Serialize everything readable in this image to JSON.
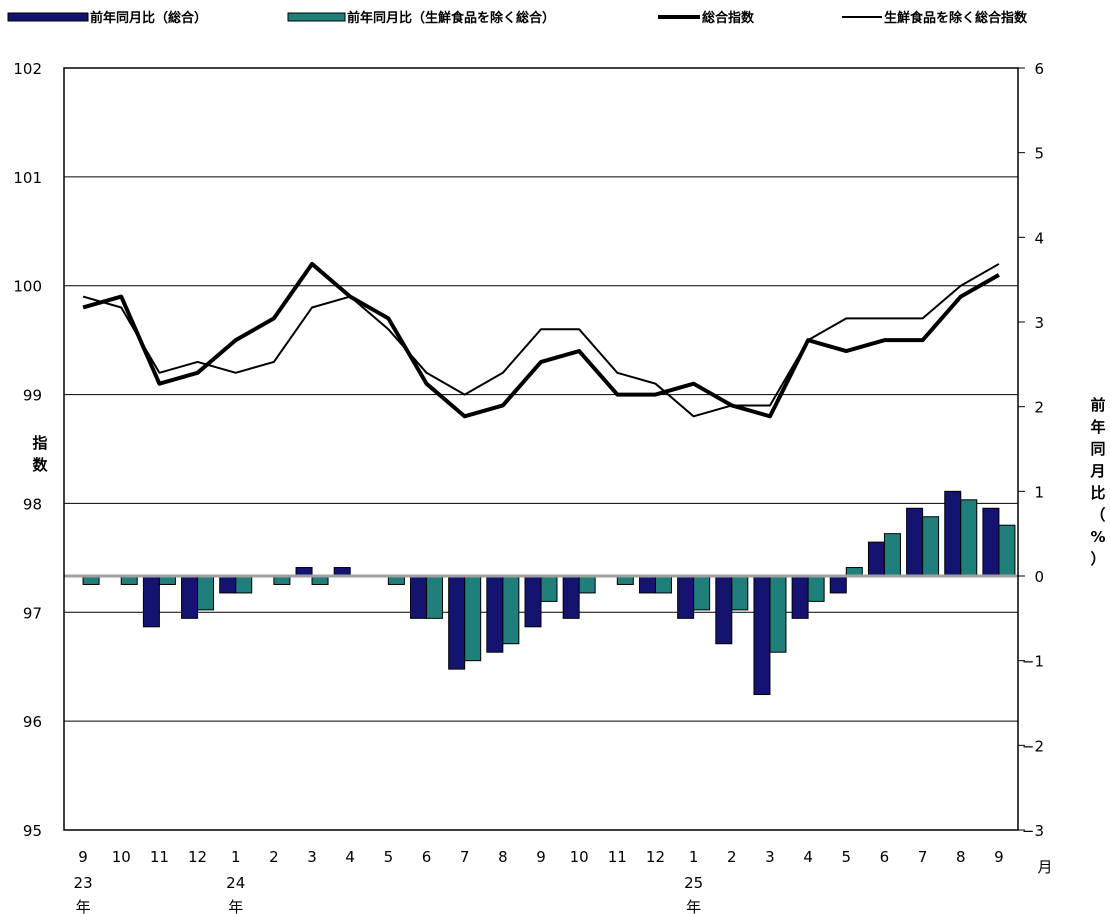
{
  "legend": {
    "bar1": "前年同月比（総合）",
    "bar2": "前年同月比（生鮮食品を除く総合）",
    "line1": "総合指数",
    "line2": "生鮮食品を除く総合指数"
  },
  "axes": {
    "left_label": "指数",
    "right_label": "前年同月比（%）",
    "x_unit": "月",
    "year_labels": [
      {
        "index": 0,
        "text": "23"
      },
      {
        "index": 4,
        "text": "24"
      },
      {
        "index": 16,
        "text": "25"
      }
    ],
    "year_suffix": "年"
  },
  "colors": {
    "bar1": "#141470",
    "bar2": "#1f7f7a",
    "line": "#000000",
    "grid": "#000000",
    "zero_line": "#a0a0a0"
  },
  "chart_data": {
    "type": "bar+line",
    "categories": [
      "9",
      "10",
      "11",
      "12",
      "1",
      "2",
      "3",
      "4",
      "5",
      "6",
      "7",
      "8",
      "9",
      "10",
      "11",
      "12",
      "1",
      "2",
      "3",
      "4",
      "5",
      "6",
      "7",
      "8",
      "9"
    ],
    "left_axis": {
      "ylim": [
        95,
        102
      ],
      "ticks": [
        95,
        96,
        97,
        98,
        99,
        100,
        101,
        102
      ]
    },
    "right_axis": {
      "ylim": [
        -3,
        6
      ],
      "ticks": [
        -3,
        -2,
        -1,
        0,
        1,
        2,
        3,
        4,
        5,
        6
      ]
    },
    "bar_series": [
      {
        "name": "前年同月比（総合）",
        "axis": "right",
        "values": [
          0.0,
          0.0,
          -0.6,
          -0.5,
          -0.2,
          0.0,
          0.1,
          0.1,
          0.0,
          -0.5,
          -1.1,
          -0.9,
          -0.6,
          -0.5,
          0.0,
          -0.2,
          -0.5,
          -0.8,
          -1.4,
          -0.5,
          -0.2,
          0.4,
          0.8,
          1.0,
          0.8
        ]
      },
      {
        "name": "前年同月比（生鮮食品を除く総合）",
        "axis": "right",
        "values": [
          -0.1,
          -0.1,
          -0.1,
          -0.4,
          -0.2,
          -0.1,
          -0.1,
          0.0,
          -0.1,
          -0.5,
          -1.0,
          -0.8,
          -0.3,
          -0.2,
          -0.1,
          -0.2,
          -0.4,
          -0.4,
          -0.9,
          -0.3,
          0.1,
          0.5,
          0.7,
          0.9,
          0.6
        ]
      }
    ],
    "line_series": [
      {
        "name": "総合指数",
        "axis": "left",
        "width": 4,
        "values": [
          99.8,
          99.9,
          99.1,
          99.2,
          99.5,
          99.7,
          100.2,
          99.9,
          99.7,
          99.1,
          98.8,
          98.9,
          99.3,
          99.4,
          99.0,
          99.0,
          99.1,
          98.9,
          98.8,
          99.5,
          99.4,
          99.5,
          99.5,
          99.9,
          100.1
        ]
      },
      {
        "name": "生鮮食品を除く総合指数",
        "axis": "left",
        "width": 2,
        "values": [
          99.9,
          99.8,
          99.2,
          99.3,
          99.2,
          99.3,
          99.8,
          99.9,
          99.6,
          99.2,
          99.0,
          99.2,
          99.6,
          99.6,
          99.2,
          99.1,
          98.8,
          98.9,
          98.9,
          99.5,
          99.7,
          99.7,
          99.7,
          100.0,
          100.2
        ]
      }
    ]
  }
}
